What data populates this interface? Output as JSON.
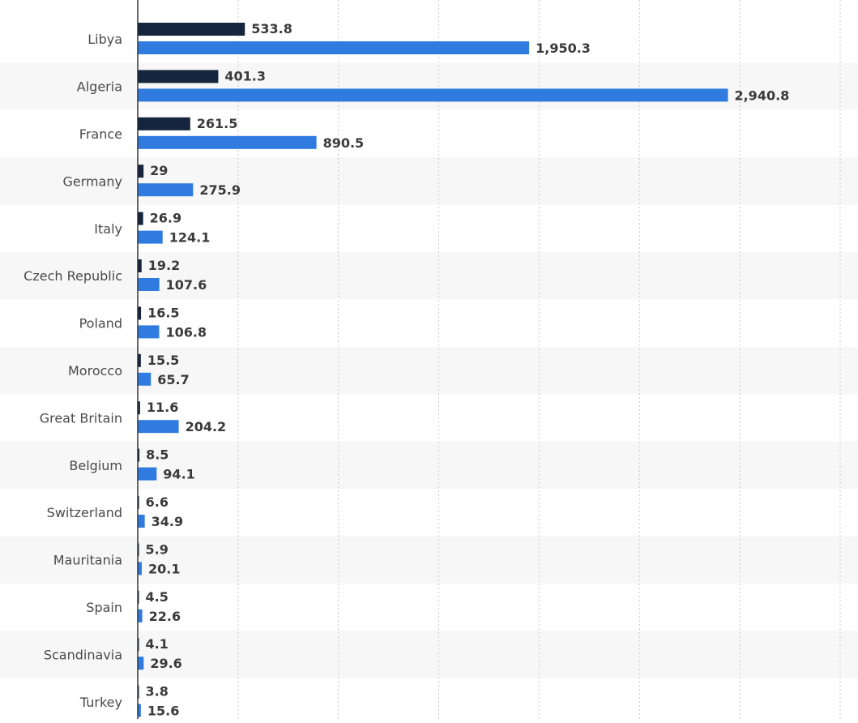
{
  "chart_data": {
    "type": "bar",
    "orientation": "horizontal",
    "categories": [
      "Libya",
      "Algeria",
      "France",
      "Germany",
      "Italy",
      "Czech Republic",
      "Poland",
      "Morocco",
      "Great Britain",
      "Belgium",
      "Switzerland",
      "Mauritania",
      "Spain",
      "Scandinavia",
      "Turkey"
    ],
    "series": [
      {
        "color": "#14253d",
        "values": [
          533.8,
          401.3,
          261.5,
          29,
          26.9,
          19.2,
          16.5,
          15.5,
          11.6,
          8.5,
          6.6,
          5.9,
          4.5,
          4.1,
          3.8
        ],
        "labels": [
          "533.8",
          "401.3",
          "261.5",
          "29",
          "26.9",
          "19.2",
          "16.5",
          "15.5",
          "11.6",
          "8.5",
          "6.6",
          "5.9",
          "4.5",
          "4.1",
          "3.8"
        ]
      },
      {
        "color": "#2f7be0",
        "values": [
          1950.3,
          2940.8,
          890.5,
          275.9,
          124.1,
          107.6,
          106.8,
          65.7,
          204.2,
          94.1,
          34.9,
          20.1,
          22.6,
          29.6,
          15.6
        ],
        "labels": [
          "1,950.3",
          "2,940.8",
          "890.5",
          "275.9",
          "124.1",
          "107.6",
          "106.8",
          "65.7",
          "204.2",
          "94.1",
          "34.9",
          "20.1",
          "22.6",
          "29.6",
          "15.6"
        ]
      }
    ],
    "xlim": [
      0,
      3500
    ],
    "grid": true,
    "grid_style": "dotted",
    "legend": "none"
  }
}
